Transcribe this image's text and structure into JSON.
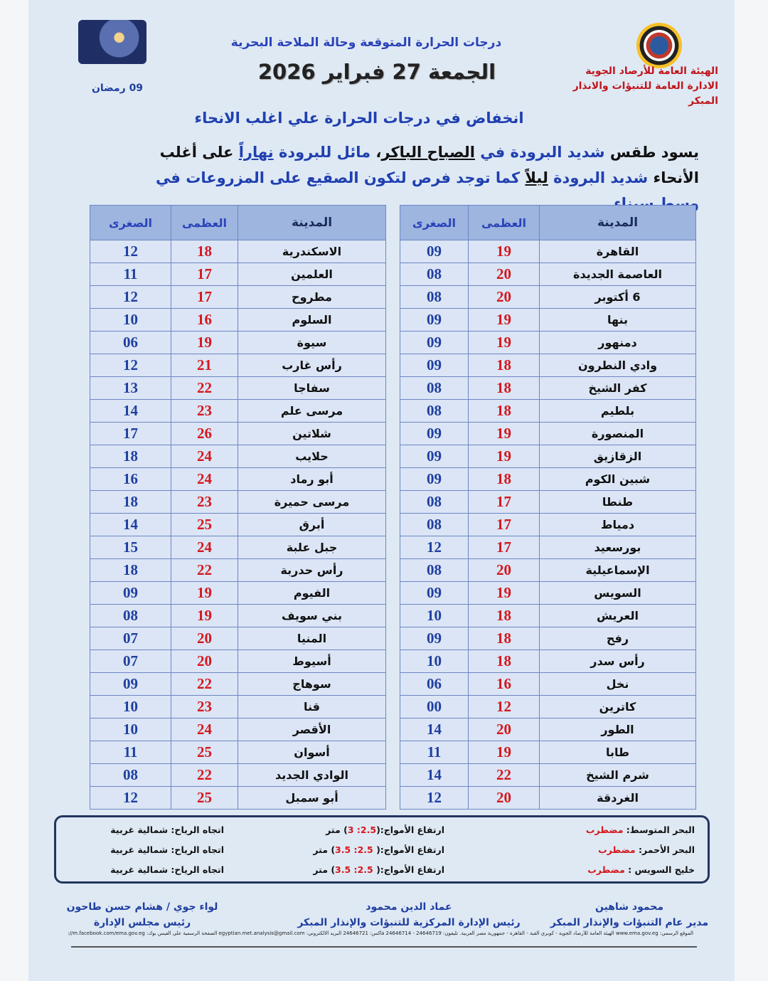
{
  "header": {
    "org_line1": "الهيئة العامة للأرصاد الجوية",
    "org_line2": "الادارة العامة للتنبؤات والانذار المبكر",
    "subtitle": "درجات الحرارة المتوقعة وحالة الملاحة البحرية",
    "date": "الجمعة 27 فبراير 2026",
    "hijri": "09 رمضان"
  },
  "summary": {
    "headline": "انخفاض في درجات الحرارة علي اغلب الانحاء",
    "p1": "يسود طقس ",
    "p2": "شديد البرودة",
    "p3": " في ",
    "p4": "الصباح الباكر",
    "p5": "، ",
    "p6": "مائل للبرودة",
    "p7": " ",
    "p8": "نهاراً",
    "p9": " على أغلب الأنحاء ",
    "p10": "شديد البرودة",
    "p11": " ",
    "p12": "ليلاً",
    "p13": " كما توجد فرص لتكون الصقيع على المزروعات في وسط سيناء."
  },
  "table_headers": {
    "city": "المدينة",
    "max": "العظمى",
    "min": "الصغرى"
  },
  "right_table": [
    [
      "القاهرة",
      "19",
      "09"
    ],
    [
      "العاصمة الجديدة",
      "20",
      "08"
    ],
    [
      "6 أكتوبر",
      "20",
      "08"
    ],
    [
      "بنها",
      "19",
      "09"
    ],
    [
      "دمنهور",
      "19",
      "09"
    ],
    [
      "وادي النطرون",
      "18",
      "09"
    ],
    [
      "كفر الشيخ",
      "18",
      "08"
    ],
    [
      "بلطيم",
      "18",
      "08"
    ],
    [
      "المنصورة",
      "19",
      "09"
    ],
    [
      "الزقازيق",
      "19",
      "09"
    ],
    [
      "شبين الكوم",
      "18",
      "09"
    ],
    [
      "طنطا",
      "17",
      "08"
    ],
    [
      "دمياط",
      "17",
      "08"
    ],
    [
      "بورسعيد",
      "17",
      "12"
    ],
    [
      "الإسماعيلية",
      "20",
      "08"
    ],
    [
      "السويس",
      "19",
      "09"
    ],
    [
      "العريش",
      "18",
      "10"
    ],
    [
      "رفح",
      "18",
      "09"
    ],
    [
      "رأس سدر",
      "18",
      "10"
    ],
    [
      "نخل",
      "16",
      "06"
    ],
    [
      "كاترين",
      "12",
      "00"
    ],
    [
      "الطور",
      "20",
      "14"
    ],
    [
      "طابا",
      "19",
      "11"
    ],
    [
      "شرم الشيخ",
      "22",
      "14"
    ],
    [
      "الغردقة",
      "20",
      "12"
    ]
  ],
  "left_table": [
    [
      "الاسكندرية",
      "18",
      "12"
    ],
    [
      "العلمين",
      "17",
      "11"
    ],
    [
      "مطروح",
      "17",
      "12"
    ],
    [
      "السلوم",
      "16",
      "10"
    ],
    [
      "سيوة",
      "19",
      "06"
    ],
    [
      "رأس غارب",
      "21",
      "12"
    ],
    [
      "سفاجا",
      "22",
      "13"
    ],
    [
      "مرسى علم",
      "23",
      "14"
    ],
    [
      "شلاتين",
      "26",
      "17"
    ],
    [
      "حلايب",
      "24",
      "18"
    ],
    [
      "أبو رماد",
      "24",
      "16"
    ],
    [
      "مرسى حميرة",
      "23",
      "18"
    ],
    [
      "أبرق",
      "25",
      "14"
    ],
    [
      "جبل علبة",
      "24",
      "15"
    ],
    [
      "رأس حدربة",
      "22",
      "18"
    ],
    [
      "الفيوم",
      "19",
      "09"
    ],
    [
      "بني سويف",
      "19",
      "08"
    ],
    [
      "المنيا",
      "20",
      "07"
    ],
    [
      "أسيوط",
      "20",
      "07"
    ],
    [
      "سوهاج",
      "22",
      "09"
    ],
    [
      "قنا",
      "23",
      "10"
    ],
    [
      "الأقصر",
      "24",
      "10"
    ],
    [
      "أسوان",
      "25",
      "11"
    ],
    [
      "الوادي الجديد",
      "22",
      "08"
    ],
    [
      "أبو سمبل",
      "25",
      "12"
    ]
  ],
  "marine": [
    {
      "sea": "البحر المتوسط: ",
      "state": "مضطرب",
      "waves_label": "ارتفاع الأمواج:(",
      "waves": "2.5: 3",
      "unit": ") متر",
      "wind": "اتجاه الرياح: شمالية غربية"
    },
    {
      "sea": "البحر الأحمر: ",
      "state": "مضطرب",
      "waves_label": "ارتفاع الأمواج:( ",
      "waves": "2.5: 3.5",
      "unit": ") متر",
      "wind": "اتجاه الرياح: شمالية غربية"
    },
    {
      "sea": "خليج السويس : ",
      "state": "مضطرب",
      "waves_label": "ارتفاع الأمواج:( ",
      "waves": "2.5: 3.5",
      "unit": ") متر",
      "wind": "اتجاه الرياح: شمالية غربية"
    }
  ],
  "signatures": [
    {
      "name": "محمود شاهين",
      "title": "مدير عام التنبؤات والإنذار المبكر"
    },
    {
      "name": "عماد الدين محمود",
      "title": "رئيس الإدارة المركزية للتنبؤات والإنذار المبكر"
    },
    {
      "name": "لواء جوي / هشام حسن طاحون",
      "title": "رئيس مجلس الإدارة"
    }
  ],
  "footer": "الموقع الرسمي: www.ema.gov.eg الهيئة العامة للأرصاد الجوية - كوبري القبة - القاهرة - جمهورية مصر العربية. تليفون: 24646719 - 24646714 فاكس: 24646721 البريد الالكتروني: egyptian.met.analysis@gmail.com الصفحة الرسمية على الفيس بوك: http://m.facebook.com/ema.gov.eg",
  "colors": {
    "max_temp": "#d4181d",
    "min_temp": "#1f3fa0",
    "header_bg": "#9db5df",
    "page_bg": "#dfe9f4"
  }
}
